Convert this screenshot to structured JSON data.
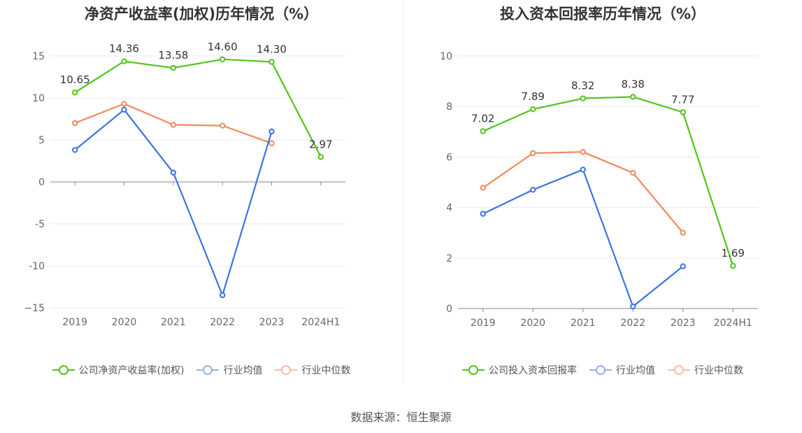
{
  "chart_data": [
    {
      "type": "line",
      "title": "净资产收益率(加权)历年情况（%）",
      "categories": [
        "2019",
        "2020",
        "2021",
        "2022",
        "2023",
        "2024H1"
      ],
      "ylim": [
        -15,
        15
      ],
      "yticks": [
        15,
        10,
        5,
        0,
        -5,
        -10,
        -15
      ],
      "ytick_labels": [
        "15",
        "10",
        "5",
        "0",
        "-5",
        "-10",
        "−15"
      ],
      "grid": true,
      "legend_position": "bottom",
      "series": [
        {
          "name": "公司净资产收益率(加权)",
          "color": "#52c41a",
          "values": [
            10.65,
            14.36,
            13.58,
            14.6,
            14.3,
            2.97
          ],
          "labels": [
            "10.65",
            "14.36",
            "13.58",
            "14.60",
            "14.30",
            "2.97"
          ]
        },
        {
          "name": "行业均值",
          "color": "#3b74e0",
          "values": [
            3.8,
            8.6,
            1.1,
            -13.5,
            6.0,
            null
          ]
        },
        {
          "name": "行业中位数",
          "color": "#f08a5d",
          "values": [
            7.0,
            9.3,
            6.8,
            6.7,
            4.6,
            null
          ]
        }
      ]
    },
    {
      "type": "line",
      "title": "投入资本回报率历年情况（%）",
      "categories": [
        "2019",
        "2020",
        "2021",
        "2022",
        "2023",
        "2024H1"
      ],
      "ylim": [
        0,
        10
      ],
      "yticks": [
        10,
        8,
        6,
        4,
        2,
        0
      ],
      "ytick_labels": [
        "10",
        "8",
        "6",
        "4",
        "2",
        "0"
      ],
      "grid": true,
      "legend_position": "bottom",
      "series": [
        {
          "name": "公司投入资本回报率",
          "color": "#52c41a",
          "values": [
            7.02,
            7.89,
            8.32,
            8.38,
            7.77,
            1.69
          ],
          "labels": [
            "7.02",
            "7.89",
            "8.32",
            "8.38",
            "7.77",
            "1.69"
          ]
        },
        {
          "name": "行业均值",
          "color": "#3b74e0",
          "values": [
            3.75,
            4.7,
            5.5,
            0.08,
            1.67,
            null
          ]
        },
        {
          "name": "行业中位数",
          "color": "#f08a5d",
          "values": [
            4.78,
            6.15,
            6.2,
            5.37,
            3.0,
            null
          ]
        }
      ]
    }
  ],
  "legend_colors": {
    "company": "#52c41a",
    "mean": "#3b74e0",
    "median": "#f08a5d"
  },
  "source_text": "数据来源：恒生聚源"
}
